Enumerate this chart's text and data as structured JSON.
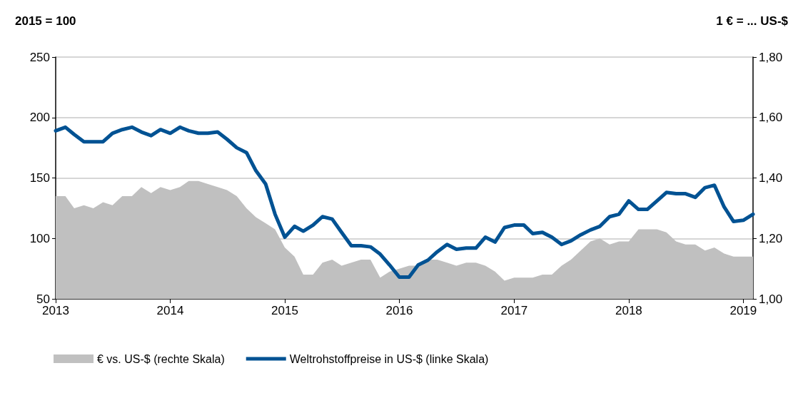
{
  "chart_data": {
    "type": "line",
    "ylabel": "2015 = 100",
    "y2label": "1 € = ... US-$",
    "x": [
      "2013-01",
      "2013-02",
      "2013-03",
      "2013-04",
      "2013-05",
      "2013-06",
      "2013-07",
      "2013-08",
      "2013-09",
      "2013-10",
      "2013-11",
      "2013-12",
      "2014-01",
      "2014-02",
      "2014-03",
      "2014-04",
      "2014-05",
      "2014-06",
      "2014-07",
      "2014-08",
      "2014-09",
      "2014-10",
      "2014-11",
      "2014-12",
      "2015-01",
      "2015-02",
      "2015-03",
      "2015-04",
      "2015-05",
      "2015-06",
      "2015-07",
      "2015-08",
      "2015-09",
      "2015-10",
      "2015-11",
      "2015-12",
      "2016-01",
      "2016-02",
      "2016-03",
      "2016-04",
      "2016-05",
      "2016-06",
      "2016-07",
      "2016-08",
      "2016-09",
      "2016-10",
      "2016-11",
      "2016-12",
      "2017-01",
      "2017-02",
      "2017-03",
      "2017-04",
      "2017-05",
      "2017-06",
      "2017-07",
      "2017-08",
      "2017-09",
      "2017-10",
      "2017-11",
      "2017-12",
      "2018-01",
      "2018-02",
      "2018-03",
      "2018-04",
      "2018-05",
      "2018-06",
      "2018-07",
      "2018-08",
      "2018-09",
      "2018-10",
      "2018-11",
      "2018-12",
      "2019-01",
      "2019-02"
    ],
    "series": [
      {
        "name": "€ vs. US-$ (rechte Skala)",
        "type": "area",
        "axis": "y2",
        "color": "#c0c0c0",
        "values": [
          1.34,
          1.34,
          1.3,
          1.31,
          1.3,
          1.32,
          1.31,
          1.34,
          1.34,
          1.37,
          1.35,
          1.37,
          1.36,
          1.37,
          1.39,
          1.39,
          1.38,
          1.37,
          1.36,
          1.34,
          1.3,
          1.27,
          1.25,
          1.23,
          1.17,
          1.14,
          1.08,
          1.08,
          1.12,
          1.13,
          1.11,
          1.12,
          1.13,
          1.13,
          1.07,
          1.09,
          1.1,
          1.11,
          1.11,
          1.13,
          1.13,
          1.12,
          1.11,
          1.12,
          1.12,
          1.11,
          1.09,
          1.06,
          1.07,
          1.07,
          1.07,
          1.08,
          1.08,
          1.11,
          1.13,
          1.16,
          1.19,
          1.2,
          1.18,
          1.19,
          1.19,
          1.23,
          1.23,
          1.23,
          1.22,
          1.19,
          1.18,
          1.18,
          1.16,
          1.17,
          1.15,
          1.14,
          1.14,
          1.14
        ]
      },
      {
        "name": "Weltrohstoffpreise in US-$ (linke Skala)",
        "color": "#005293",
        "values": [
          189,
          192,
          186,
          180,
          180,
          180,
          187,
          190,
          192,
          188,
          185,
          190,
          187,
          192,
          189,
          187,
          187,
          188,
          182,
          175,
          171,
          156,
          145,
          120,
          101,
          110,
          106,
          111,
          118,
          116,
          105,
          94,
          94,
          93,
          87,
          78,
          68,
          68,
          78,
          82,
          89,
          95,
          91,
          92,
          92,
          101,
          97,
          109,
          111,
          111,
          104,
          105,
          101,
          95,
          98,
          103,
          107,
          110,
          118,
          120,
          131,
          124,
          124,
          131,
          138,
          137,
          137,
          134,
          142,
          144,
          126,
          114,
          115,
          120
        ]
      }
    ],
    "xlim": [
      "2013-01",
      "2019-02"
    ],
    "xticks": [
      "2013",
      "2014",
      "2015",
      "2016",
      "2017",
      "2018",
      "2019"
    ],
    "ylim": [
      50,
      250
    ],
    "yticks": [
      50,
      100,
      150,
      200,
      250
    ],
    "y2lim": [
      1.0,
      1.8
    ],
    "y2ticks": [
      {
        "value": 1.0,
        "label": "1,00"
      },
      {
        "value": 1.2,
        "label": "1,20"
      },
      {
        "value": 1.4,
        "label": "1,40"
      },
      {
        "value": 1.6,
        "label": "1,60"
      },
      {
        "value": 1.8,
        "label": "1,80"
      }
    ],
    "grid": "y",
    "legend": "bottom"
  }
}
